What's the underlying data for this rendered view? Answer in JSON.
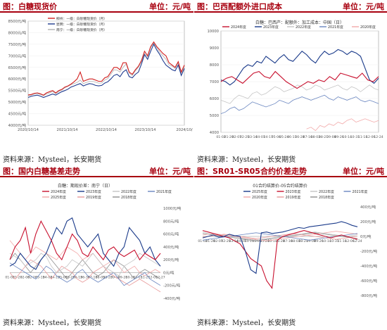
{
  "panels": [
    {
      "title": "图：白糖现货价",
      "unit": "单位：元/吨",
      "source": "资料来源：Mysteel，长安期货"
    },
    {
      "title": "图：巴西配额外进口成本",
      "unit": "单位：元/吨",
      "source": "资料来源：Mysteel，长安期货"
    },
    {
      "title": "图：国内白糖基差走势",
      "unit": "单位：元/吨",
      "source": "资料来源：Mysteel，长安期货"
    },
    {
      "title": "图：SR01-SR05合约价差走势",
      "unit": "单位：元/吨",
      "source": "资料来源：Mysteel，长安期货"
    }
  ],
  "chart_data": [
    {
      "type": "line",
      "legend": [
        "柳州：一级：白砂糖现货价（月）",
        "昆明：一级：白砂糖现货价（月）",
        "南宁：一级：白砂糖现货价（月）"
      ],
      "colors": [
        "#d21f1f",
        "#1f3b8f",
        "#b0b0b0"
      ],
      "yticks": [
        "8500元/吨",
        "8000元/吨",
        "7500元/吨",
        "7000元/吨",
        "6500元/吨",
        "6000元/吨",
        "5500元/吨",
        "5000元/吨",
        "4500元/吨",
        "4000元/吨"
      ],
      "xticks": [
        "2020/10/14",
        "2021/10/14",
        "2022/10/14",
        "2023/10/14",
        "2024/10/"
      ],
      "ylim": [
        4000,
        8500
      ],
      "series": [
        {
          "name": "柳州：一级：白砂糖现货价（月）",
          "values": [
            5310,
            5330,
            5380,
            5400,
            5360,
            5300,
            5400,
            5450,
            5500,
            5400,
            5500,
            5550,
            5650,
            5700,
            5780,
            5880,
            6000,
            6300,
            5900,
            5950,
            6000,
            6000,
            5950,
            5900,
            5900,
            6050,
            6100,
            6300,
            6500,
            6500,
            6400,
            6700,
            6700,
            6300,
            6200,
            6400,
            6550,
            6800,
            7200,
            7000,
            7400,
            7600,
            7400,
            7250,
            7100,
            7000,
            6700,
            6600,
            6500,
            6750,
            6300,
            6600
          ]
        },
        {
          "name": "昆明：一级：白砂糖现货价（月）",
          "values": [
            5200,
            5250,
            5280,
            5300,
            5260,
            5200,
            5250,
            5300,
            5350,
            5300,
            5380,
            5450,
            5500,
            5560,
            5650,
            5700,
            5750,
            5800,
            5700,
            5750,
            5800,
            5780,
            5720,
            5700,
            5720,
            5820,
            5880,
            6000,
            6150,
            6200,
            6100,
            6300,
            6400,
            6100,
            6050,
            6200,
            6300,
            6650,
            7050,
            6850,
            7200,
            7500,
            7250,
            7050,
            6800,
            6600,
            6500,
            6400,
            6350,
            6600,
            6150,
            6450
          ]
        },
        {
          "name": "南宁：一级：白砂糖现货价（月）",
          "values": [
            5280,
            5300,
            5340,
            5370,
            5330,
            5280,
            5350,
            5400,
            5450,
            5360,
            5460,
            5520,
            5620,
            5680,
            5750,
            5800,
            5850,
            5950,
            5800,
            5850,
            5900,
            5900,
            5860,
            5820,
            5830,
            5950,
            6020,
            6200,
            6400,
            6380,
            6300,
            6500,
            6650,
            6250,
            6150,
            6350,
            6500,
            6750,
            7100,
            6950,
            7350,
            7550,
            7350,
            7150,
            7000,
            6850,
            6600,
            6550,
            6450,
            6700,
            6250,
            6500
          ]
        }
      ]
    },
    {
      "type": "line",
      "title": "白糖：巴西产：配额外：加工成本：中国（日）",
      "legend": [
        "2024年度",
        "2023年度",
        "2022年度",
        "2021年度",
        "2020年度"
      ],
      "colors": [
        "#c8102e",
        "#1a3a8a",
        "#c4c4c4",
        "#6a86c0",
        "#f2a9a9"
      ],
      "yticks": [
        "10000",
        "9000",
        "8000",
        "7000",
        "6000",
        "5000",
        "4000"
      ],
      "xticks": [
        "01-02",
        "01-20",
        "02-07",
        "02-25",
        "03-14",
        "04-01",
        "04-17",
        "05-06",
        "05-24",
        "06-11",
        "06-28",
        "07-16",
        "08-03",
        "08-21",
        "09-08",
        "09-26",
        "10-14",
        "10-31",
        "11-18",
        "12-06",
        "12-24"
      ],
      "ylim": [
        4000,
        10000
      ],
      "series": [
        {
          "name": "2024年度",
          "values": [
            7000,
            7200,
            7300,
            7100,
            6900,
            7200,
            7500,
            7600,
            7300,
            7200,
            7600,
            7300,
            7000,
            6800,
            6600,
            6800,
            7000,
            6900,
            7100,
            7000,
            7300,
            7100,
            7500,
            7400,
            7300,
            7200,
            7500,
            7100,
            7000,
            7300
          ]
        },
        {
          "name": "2023年度",
          "values": [
            7100,
            7000,
            6800,
            7000,
            7400,
            7800,
            8000,
            7900,
            8200,
            8100,
            8500,
            8300,
            8100,
            8400,
            8600,
            8300,
            8200,
            8500,
            8800,
            8600,
            8300,
            8100,
            8500,
            8800,
            8600,
            8700,
            8900,
            8800,
            8600,
            8800,
            8700,
            8500,
            7800,
            7100,
            6900,
            7200
          ]
        },
        {
          "name": "2022年度",
          "values": [
            5900,
            5800,
            5700,
            6000,
            6200,
            6100,
            6000,
            6300,
            6400,
            6200,
            6300,
            6500,
            6700,
            6600,
            6400,
            6500,
            6600,
            6800,
            6700,
            6500,
            6600,
            6800,
            6700,
            6500,
            6600,
            6700,
            6800,
            6600,
            6500,
            6700,
            6600,
            6400,
            6600,
            6800,
            6600,
            6500
          ]
        },
        {
          "name": "2021年度",
          "values": [
            5100,
            5200,
            5400,
            5500,
            5300,
            5400,
            5600,
            5800,
            5700,
            5600,
            5500,
            5600,
            5700,
            5900,
            5800,
            5700,
            5900,
            6000,
            6100,
            6000,
            5900,
            6000,
            6100,
            6200,
            6000,
            5900,
            6100,
            6000,
            5900,
            6000,
            6100,
            5900,
            5800,
            5900,
            5800,
            5700
          ]
        },
        {
          "name": "2020年度",
          "values": [
            null,
            null,
            null,
            null,
            null,
            null,
            null,
            null,
            null,
            null,
            null,
            null,
            null,
            null,
            null,
            null,
            null,
            null,
            null,
            4200,
            4300,
            4100,
            4400,
            4300,
            4500,
            4400,
            4600,
            4500,
            4700,
            4800,
            4600,
            4700,
            4800,
            4700,
            4600,
            4700
          ]
        }
      ]
    },
    {
      "type": "line",
      "title": "白糖：期现价差：南宁（日）",
      "legend": [
        "2024年度",
        "2023年度",
        "2022年度",
        "2021年度",
        "2025年度",
        "2019年度",
        "2018年度"
      ],
      "colors": [
        "#c8102e",
        "#1a3a8a",
        "#c4c4c4",
        "#6a86c0",
        "#f2a9a9",
        "#e89a9a",
        "#8f8f8f"
      ],
      "yticks": [
        "1000元/吨",
        "800元/吨",
        "600元/吨",
        "400元/吨",
        "200元/吨",
        "0元/吨",
        "-200元/吨",
        "-400元/吨"
      ],
      "xticks": [
        "01-02",
        "01-20",
        "02-08",
        "02-26",
        "03-15",
        "04-02",
        "04-19",
        "05-08",
        "05-26",
        "06-13",
        "06-30",
        "07-18",
        "08-05",
        "08-23",
        "09-10",
        "09-28",
        "10-16",
        "11-03",
        "11-21",
        "12-09",
        "12-27"
      ],
      "ylim": [
        -400,
        1000
      ],
      "series": [
        {
          "name": "2024年度",
          "values": [
            200,
            400,
            500,
            700,
            300,
            600,
            800,
            650,
            500,
            300,
            200,
            400,
            600,
            500,
            300,
            250,
            400,
            300,
            200,
            350,
            400,
            300,
            250,
            300,
            350,
            200,
            300,
            250,
            200,
            300
          ]
        },
        {
          "name": "2023年度",
          "values": [
            100,
            150,
            300,
            200,
            100,
            50,
            200,
            300,
            500,
            700,
            600,
            800,
            850,
            600,
            500,
            400,
            500,
            600,
            300,
            200,
            100,
            300,
            400,
            700,
            600,
            500,
            300,
            400,
            200,
            100
          ]
        },
        {
          "name": "2022年度",
          "values": [
            300,
            250,
            200,
            100,
            150,
            200,
            300,
            250,
            100,
            0,
            50,
            100,
            200,
            150,
            100,
            200,
            300,
            200,
            100,
            50,
            0,
            -50,
            100,
            150,
            200,
            300,
            250,
            200,
            150,
            100
          ]
        },
        {
          "name": "2021年度",
          "values": [
            150,
            100,
            50,
            0,
            -50,
            -100,
            0,
            100,
            50,
            -50,
            -100,
            -150,
            -100,
            0,
            50,
            -50,
            -100,
            -150,
            -100,
            -50,
            0,
            -100,
            -200,
            -150,
            -100,
            -50,
            0,
            -100,
            -150,
            -200
          ]
        },
        {
          "name": "2025年度",
          "values": [
            500,
            400,
            300,
            200,
            300,
            400,
            350,
            300,
            250,
            200,
            300,
            400,
            350,
            300,
            200,
            250,
            300,
            200,
            100,
            150,
            200,
            100,
            0,
            50,
            100,
            0,
            -50,
            0,
            50,
            0
          ]
        },
        {
          "name": "2019年度",
          "values": [
            0,
            -100,
            0,
            100,
            200,
            150,
            100,
            0,
            -100,
            0,
            100,
            50,
            0,
            -100,
            -150,
            -100,
            0,
            50,
            100,
            0,
            -50,
            -100,
            -150,
            -200,
            -150,
            -100,
            -150,
            -200,
            -250,
            -300
          ]
        },
        {
          "name": "2018年度",
          "values": [
            200,
            300,
            200,
            100,
            0,
            100,
            200,
            300,
            200,
            100,
            0,
            -100,
            0,
            100,
            200,
            100,
            0,
            -50,
            0,
            100,
            200,
            150,
            100,
            0,
            -100,
            0,
            50,
            0,
            -50,
            -100
          ]
        }
      ]
    },
    {
      "type": "line",
      "title": "01合约结算价-05合约结算价",
      "legend": [
        "2025年度",
        "2023年度",
        "2022年度",
        "2021年度",
        "2020年度",
        "2019年度",
        "2018年度"
      ],
      "colors": [
        "#1a3a8a",
        "#c8102e",
        "#c4c4c4",
        "#6a86c0",
        "#f2a9a9",
        "#e89a9a",
        "#8f8f8f"
      ],
      "yticks": [
        "400元/吨",
        "200元/吨",
        "0元/吨",
        "-200元/吨",
        "-400元/吨",
        "-600元/吨",
        "-800元/吨"
      ],
      "xticks": [
        "01-02",
        "01-20",
        "02-07",
        "02-25",
        "03-14",
        "04-01",
        "04-17",
        "05-06",
        "05-24",
        "06-11",
        "06-28",
        "07-16",
        "08-03",
        "08-21",
        "09-08",
        "09-26",
        "10-14",
        "10-31",
        "11-18",
        "12-06",
        "12-24"
      ],
      "ylim": [
        -800,
        400
      ],
      "series": [
        {
          "name": "2025年度",
          "values": [
            -20,
            0,
            20,
            -10,
            0,
            30,
            10,
            0,
            -200,
            -450,
            -500,
            50,
            60,
            40,
            50,
            60,
            80,
            100,
            120,
            110,
            130,
            140,
            150,
            160,
            170,
            180,
            200,
            180,
            150,
            130
          ]
        },
        {
          "name": "2023年度",
          "values": [
            80,
            60,
            40,
            20,
            0,
            -20,
            -60,
            -100,
            -200,
            -300,
            -350,
            -400,
            -600,
            -700,
            -50,
            0,
            20,
            40,
            60,
            80,
            60,
            40,
            20,
            0,
            -20,
            0,
            20,
            0,
            -20,
            -40
          ]
        },
        {
          "name": "2022年度",
          "values": [
            60,
            40,
            30,
            20,
            10,
            0,
            -10,
            -20,
            -30,
            -40,
            -50,
            -40,
            -30,
            -20,
            -10,
            0,
            10,
            20,
            30,
            40,
            50,
            60,
            50,
            40,
            30,
            20,
            10,
            0,
            10,
            20
          ]
        },
        {
          "name": "2021年度",
          "values": [
            -50,
            -40,
            -30,
            -20,
            -10,
            0,
            10,
            20,
            30,
            40,
            50,
            40,
            30,
            20,
            10,
            0,
            -10,
            -20,
            -30,
            -40,
            -50,
            -40,
            -30,
            -20,
            -10,
            0,
            10,
            20,
            30,
            40
          ]
        },
        {
          "name": "2020年度",
          "values": [
            20,
            30,
            40,
            30,
            20,
            10,
            0,
            -10,
            -20,
            -30,
            -40,
            -50,
            -60,
            -50,
            -40,
            -30,
            -20,
            -10,
            0,
            10,
            20,
            30,
            40,
            50,
            60,
            70,
            60,
            50,
            40,
            30
          ]
        },
        {
          "name": "2019年度",
          "values": [
            -10,
            0,
            10,
            20,
            30,
            20,
            10,
            0,
            -10,
            -20,
            -30,
            -20,
            -10,
            0,
            10,
            20,
            30,
            40,
            30,
            20,
            10,
            0,
            -10,
            -20,
            -30,
            -40,
            -30,
            -20,
            -10,
            0
          ]
        },
        {
          "name": "2018年度",
          "values": [
            40,
            30,
            20,
            10,
            0,
            -10,
            -20,
            -30,
            -40,
            -50,
            -60,
            -50,
            -40,
            -30,
            -20,
            -10,
            0,
            10,
            20,
            30,
            40,
            50,
            40,
            30,
            20,
            10,
            0,
            -10,
            -20,
            -30
          ]
        }
      ]
    }
  ]
}
